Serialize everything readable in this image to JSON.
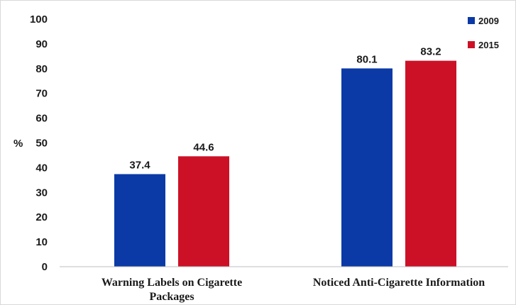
{
  "chart_data": {
    "type": "bar",
    "title": "",
    "xlabel": "",
    "ylabel": "%",
    "ylim": [
      0,
      100
    ],
    "yticks": [
      0,
      10,
      20,
      30,
      40,
      50,
      60,
      70,
      80,
      90,
      100
    ],
    "grid": false,
    "legend_position": "top-right",
    "categories": [
      [
        "Warning Labels on Cigarette",
        "Packages"
      ],
      [
        "Noticed Anti-Cigarette Information"
      ]
    ],
    "series": [
      {
        "name": "2009",
        "values": [
          37.4,
          80.1
        ],
        "color": "#0b3aa6"
      },
      {
        "name": "2015",
        "values": [
          44.6,
          83.2
        ],
        "color": "#cc1126"
      }
    ]
  }
}
